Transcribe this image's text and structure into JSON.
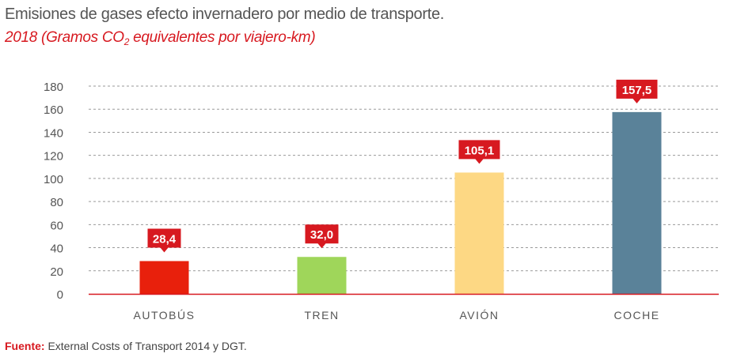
{
  "header": {
    "title": "Emisiones de gases efecto invernadero por medio de transporte.",
    "subtitle_pre": "2018 (Gramos CO",
    "subtitle_sub": "2",
    "subtitle_post": " equivalentes por viajero-km)"
  },
  "source": {
    "label": "Fuente:",
    "text": " External Costs of Transport 2014 y DGT."
  },
  "colors": {
    "accent": "#d71920",
    "grid": "#9a9a9a",
    "axis_text": "#555555"
  },
  "chart_data": {
    "type": "bar",
    "title": "Emisiones de gases efecto invernadero por medio de transporte.",
    "subtitle": "2018 (Gramos CO2 equivalentes por viajero-km)",
    "xlabel": "",
    "ylabel": "",
    "ylim": [
      0,
      180
    ],
    "yticks": [
      "0",
      "20",
      "40",
      "60",
      "80",
      "100",
      "120",
      "140",
      "160",
      "180"
    ],
    "grid": true,
    "categories": [
      "AUTOBÚS",
      "TREN",
      "AVIÓN",
      "COCHE"
    ],
    "values": [
      28.4,
      32.0,
      105.1,
      157.5
    ],
    "value_labels": [
      "28,4",
      "32,0",
      "105,1",
      "157,5"
    ],
    "bar_colors": [
      "#e8200c",
      "#9fd65a",
      "#fdd884",
      "#5a8299"
    ]
  }
}
